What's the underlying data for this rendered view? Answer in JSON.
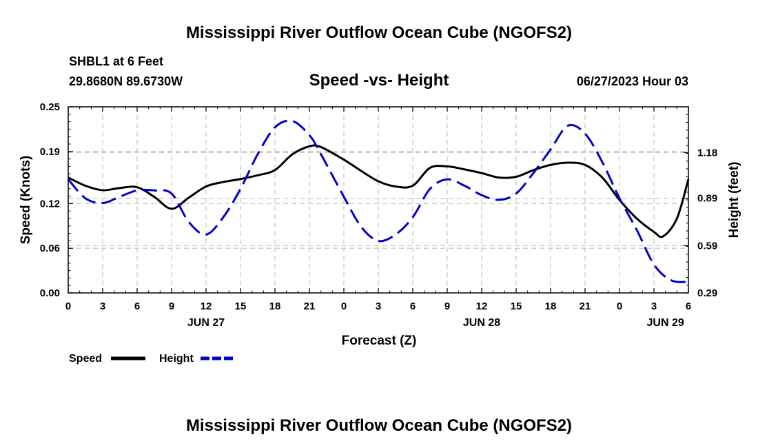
{
  "page": {
    "title_top": "Mississippi River Outflow Ocean Cube (NGOFS2)",
    "title_bottom": "Mississippi River Outflow Ocean Cube (NGOFS2)"
  },
  "chart_data": {
    "type": "line",
    "title": "Speed -vs- Height",
    "station": "SHBL1 at 6 Feet",
    "coords": "29.8680N  89.6730W",
    "datetime": "06/27/2023 Hour 03",
    "xlabel": "Forecast (Z)",
    "ylabel": "Speed (Knots)",
    "y2label": "Height (feet)",
    "x_range": [
      0,
      54
    ],
    "ylim": [
      0,
      0.25
    ],
    "y2lim": [
      0.29,
      1.47
    ],
    "x_ticks": [
      0,
      3,
      6,
      9,
      12,
      15,
      18,
      21,
      24,
      27,
      30,
      33,
      36,
      39,
      42,
      45,
      48,
      51,
      54
    ],
    "x_tick_labels": [
      "0",
      "3",
      "6",
      "9",
      "12",
      "15",
      "18",
      "21",
      "0",
      "3",
      "6",
      "9",
      "12",
      "15",
      "18",
      "21",
      "0",
      "3",
      "6"
    ],
    "y_ticks": [
      0,
      0.06,
      0.12,
      0.19,
      0.25
    ],
    "y_tick_labels": [
      "0.00",
      "0.06",
      "0.12",
      "0.19",
      "0.25"
    ],
    "y2_ticks": [
      0.29,
      0.59,
      0.89,
      1.18
    ],
    "y2_tick_labels": [
      "0.29",
      "0.59",
      "0.89",
      "1.18"
    ],
    "day_labels": [
      {
        "x": 12,
        "label": "JUN 27"
      },
      {
        "x": 36,
        "label": "JUN 28"
      },
      {
        "x": 52,
        "label": "JUN 29"
      }
    ],
    "grid": true,
    "legend": [
      {
        "label": "Speed",
        "color": "#000000",
        "style": "solid"
      },
      {
        "label": "Height",
        "color": "#0000cc",
        "style": "dashed"
      }
    ],
    "series": [
      {
        "name": "Speed",
        "axis": "left",
        "color": "#000000",
        "x": [
          0,
          1.5,
          3,
          4.5,
          6,
          7.5,
          9,
          10.5,
          12,
          13.5,
          15,
          16.5,
          18,
          19.5,
          21,
          22,
          24,
          25.5,
          27,
          28.5,
          30,
          31.5,
          33,
          34.5,
          36,
          37.5,
          39,
          40.5,
          42,
          43.5,
          45,
          46.5,
          48,
          49.5,
          51,
          51.8,
          53,
          54
        ],
        "values": [
          0.155,
          0.144,
          0.138,
          0.141,
          0.142,
          0.129,
          0.113,
          0.128,
          0.143,
          0.149,
          0.153,
          0.158,
          0.165,
          0.186,
          0.197,
          0.196,
          0.179,
          0.164,
          0.15,
          0.143,
          0.144,
          0.168,
          0.17,
          0.166,
          0.161,
          0.155,
          0.156,
          0.165,
          0.172,
          0.175,
          0.172,
          0.155,
          0.125,
          0.1,
          0.082,
          0.076,
          0.1,
          0.153
        ]
      },
      {
        "name": "Height",
        "axis": "right",
        "color": "#0000cc",
        "x": [
          0,
          1.5,
          3,
          4.5,
          6,
          7.5,
          9,
          10.5,
          12,
          13.5,
          15,
          16.5,
          18,
          19.5,
          21,
          22,
          24,
          25.5,
          27,
          28.5,
          30,
          31.5,
          33,
          34.5,
          36,
          37.5,
          39,
          40.5,
          42,
          43.5,
          45,
          46.5,
          48,
          49.5,
          51,
          52.5,
          54
        ],
        "values": [
          1.01,
          0.89,
          0.86,
          0.9,
          0.94,
          0.94,
          0.92,
          0.74,
          0.66,
          0.77,
          0.95,
          1.17,
          1.34,
          1.38,
          1.29,
          1.17,
          0.9,
          0.71,
          0.62,
          0.66,
          0.77,
          0.95,
          1.01,
          0.97,
          0.91,
          0.88,
          0.92,
          1.05,
          1.2,
          1.35,
          1.3,
          1.12,
          0.89,
          0.69,
          0.47,
          0.37,
          0.36
        ]
      }
    ]
  }
}
